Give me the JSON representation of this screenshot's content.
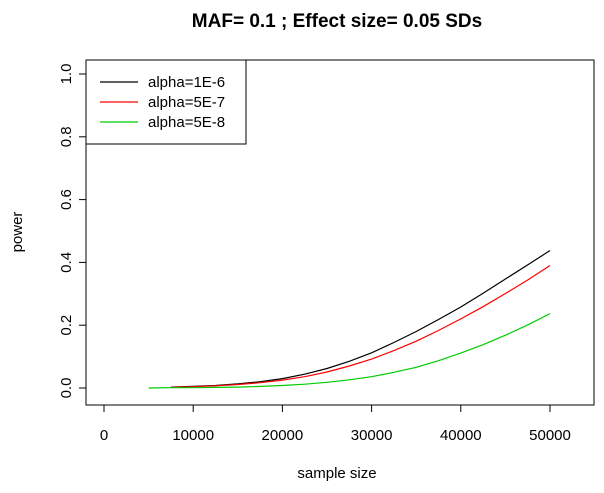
{
  "chart_data": {
    "type": "line",
    "title": "MAF= 0.1 ; Effect size= 0.05 SDs",
    "xlabel": "sample size",
    "ylabel": "power",
    "xlim": [
      0,
      50000
    ],
    "ylim": [
      0,
      1.0
    ],
    "x_ticks": [
      0,
      10000,
      20000,
      30000,
      40000,
      50000
    ],
    "x_tick_labels": [
      "0",
      "10000",
      "20000",
      "30000",
      "40000",
      "50000"
    ],
    "y_ticks": [
      0.0,
      0.2,
      0.4,
      0.6,
      0.8,
      1.0
    ],
    "y_tick_labels": [
      "0.0",
      "0.2",
      "0.4",
      "0.6",
      "0.8",
      "1.0"
    ],
    "grid": false,
    "legend_position": "top-left",
    "series": [
      {
        "name": "alpha=1E-6",
        "color": "#000000",
        "x": [
          7500,
          10000,
          12500,
          15000,
          17500,
          20000,
          22500,
          25000,
          27500,
          30000,
          32500,
          35000,
          37500,
          40000,
          42500,
          45000,
          47500,
          50000
        ],
        "y": [
          0.003,
          0.005,
          0.008,
          0.013,
          0.02,
          0.03,
          0.044,
          0.062,
          0.085,
          0.112,
          0.145,
          0.18,
          0.218,
          0.258,
          0.302,
          0.347,
          0.392,
          0.438
        ]
      },
      {
        "name": "alpha=5E-7",
        "color": "#ff0000",
        "x": [
          7500,
          10000,
          12500,
          15000,
          17500,
          20000,
          22500,
          25000,
          27500,
          30000,
          32500,
          35000,
          37500,
          40000,
          42500,
          45000,
          47500,
          50000
        ],
        "y": [
          0.002,
          0.004,
          0.007,
          0.011,
          0.017,
          0.025,
          0.036,
          0.051,
          0.07,
          0.092,
          0.119,
          0.149,
          0.183,
          0.22,
          0.259,
          0.301,
          0.344,
          0.39
        ]
      },
      {
        "name": "alpha=5E-8",
        "color": "#00cc00",
        "x": [
          5000,
          7500,
          10000,
          12500,
          15000,
          17500,
          20000,
          22500,
          25000,
          27500,
          30000,
          32500,
          35000,
          37500,
          40000,
          42500,
          45000,
          47500,
          50000
        ],
        "y": [
          0.0,
          0.001,
          0.001,
          0.002,
          0.003,
          0.005,
          0.008,
          0.012,
          0.018,
          0.026,
          0.036,
          0.05,
          0.066,
          0.087,
          0.111,
          0.138,
          0.168,
          0.201,
          0.237
        ]
      }
    ]
  }
}
